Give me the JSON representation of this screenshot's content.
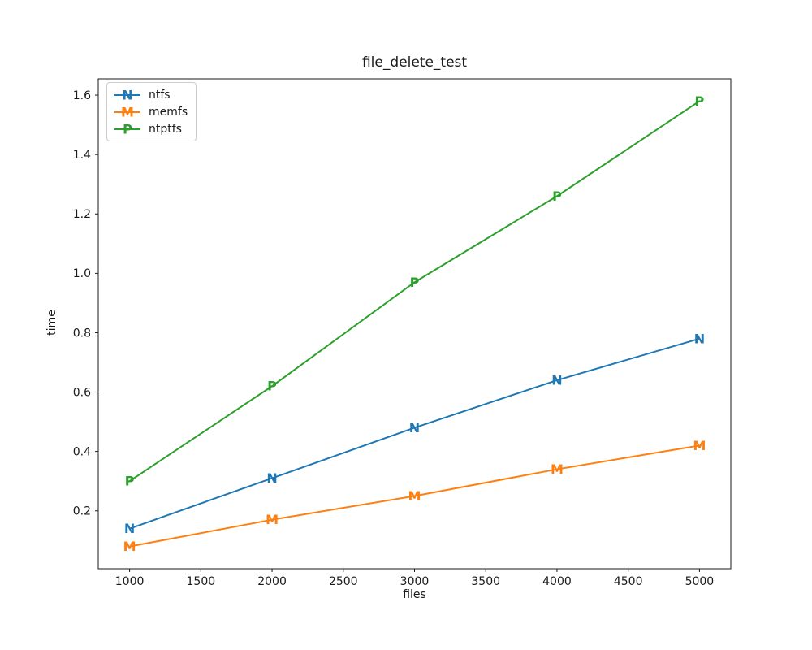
{
  "chart_data": {
    "type": "line",
    "title": "file_delete_test",
    "xlabel": "files",
    "ylabel": "time",
    "x": [
      1000,
      2000,
      3000,
      4000,
      5000
    ],
    "series": [
      {
        "name": "ntfs",
        "color": "#1f77b4",
        "marker": "N",
        "values": [
          0.14,
          0.31,
          0.48,
          0.64,
          0.78
        ]
      },
      {
        "name": "memfs",
        "color": "#ff7f0e",
        "marker": "M",
        "values": [
          0.08,
          0.17,
          0.25,
          0.34,
          0.42
        ]
      },
      {
        "name": "ntptfs",
        "color": "#2ca02c",
        "marker": "P",
        "values": [
          0.3,
          0.62,
          0.97,
          1.26,
          1.58
        ]
      }
    ],
    "xticks": [
      1000,
      1500,
      2000,
      2500,
      3000,
      3500,
      4000,
      4500,
      5000
    ],
    "yticks": [
      0.2,
      0.4,
      0.6,
      0.8,
      1.0,
      1.2,
      1.4,
      1.6
    ],
    "xlim": [
      780,
      5220
    ],
    "ylim": [
      0.005,
      1.655
    ],
    "grid": false,
    "legend_position": "upper left",
    "axis_color": "#1a1a1a"
  }
}
